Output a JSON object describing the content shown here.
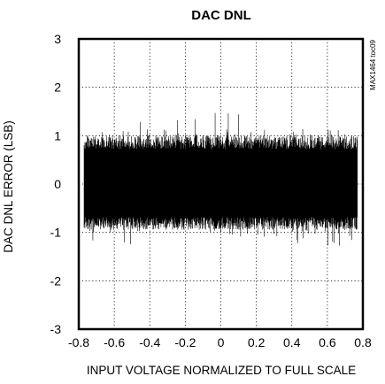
{
  "chart_data": {
    "type": "line",
    "title": "DAC DNL",
    "xlabel": "INPUT VOLTAGE NORMALIZED TO FULL SCALE",
    "ylabel": "DAC DNL ERROR (LSB)",
    "xlim": [
      -0.8,
      0.8
    ],
    "ylim": [
      -3,
      3
    ],
    "x_ticks": [
      "-0.8",
      "-0.6",
      "-0.4",
      "-0.2",
      "0",
      "0.2",
      "0.4",
      "0.6",
      "0.8"
    ],
    "y_ticks": [
      "3",
      "2",
      "1",
      "0",
      "-1",
      "-2",
      "-3"
    ],
    "x_tick_values": [
      -0.8,
      -0.6,
      -0.4,
      -0.2,
      0,
      0.2,
      0.4,
      0.6,
      0.8
    ],
    "y_tick_values": [
      3,
      2,
      1,
      0,
      -1,
      -2,
      -3
    ],
    "grid": "dotted",
    "series": [
      {
        "color": "#000000",
        "x_range": [
          -0.77,
          0.77
        ],
        "envelope_typical": [
          -0.95,
          1.0
        ],
        "envelope_peak": [
          -1.3,
          1.5
        ],
        "description_note": ""
      }
    ],
    "code_label": "MAX1464 toc09"
  }
}
